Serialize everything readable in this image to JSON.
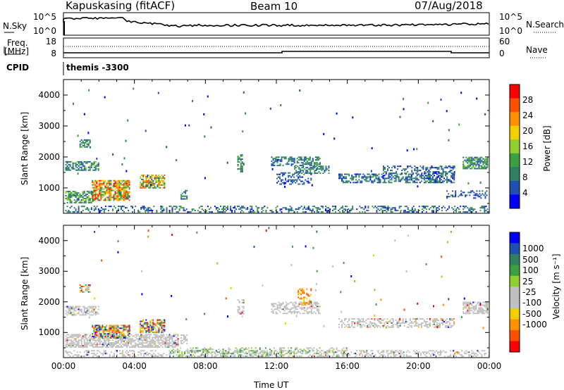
{
  "header": {
    "station": "Kapuskasing (fitACF)",
    "beam": "Beam 10",
    "date": "07/Aug/2018"
  },
  "top_panels": {
    "nsky_label": "N.Sky",
    "nsky_ticks": [
      "10^5",
      "10^0"
    ],
    "nsearch_label": "N.Search",
    "nsearch_ticks": [
      "10^5",
      "10^0"
    ],
    "freq_label": "Freq.",
    "freq_unit": "[MHz]",
    "freq_ticks": [
      "18",
      "8"
    ],
    "nave_label": "Nave",
    "nave_ticks": [
      "60",
      "0"
    ],
    "cpid_label": "CPID",
    "cpid_value": "themis -3300"
  },
  "colors": {
    "power_scale": [
      "#0000ff",
      "#1f4fb0",
      "#2f7f60",
      "#3aa040",
      "#8fd030",
      "#f0d000",
      "#ff9000",
      "#ff5000",
      "#ff0000"
    ],
    "velocity_scale": [
      "#ff0000",
      "#ff5000",
      "#ff9000",
      "#f0d000",
      "#c0c0c0",
      "#c0c0c0",
      "#8fd030",
      "#3aa040",
      "#2f7f60",
      "#1f4fb0",
      "#0000ff"
    ],
    "ground_scatter": "#c0c0c0"
  },
  "chart_data": [
    {
      "type": "heatmap",
      "name": "power-panel",
      "ylabel": "Slant Range [km]",
      "xlabel": "",
      "x_ticks": [
        "00:00",
        "04:00",
        "08:00",
        "12:00",
        "16:00",
        "20:00",
        "00:00"
      ],
      "y_ticks": [
        "1000",
        "2000",
        "3000",
        "4000"
      ],
      "ylim": [
        180,
        4500
      ],
      "colorbar": {
        "label": "Power [dB]",
        "range": [
          0,
          30
        ],
        "ticks": [
          "4",
          "8",
          "12",
          "16",
          "20",
          "24",
          "28"
        ]
      },
      "regions": [
        {
          "t0": 0.1,
          "t1": 24.0,
          "r0": 200,
          "r1": 420,
          "density": 0.35,
          "vmin": 2,
          "vmax": 12
        },
        {
          "t0": 0.1,
          "t1": 1.7,
          "r0": 500,
          "r1": 900,
          "density": 0.7,
          "vmin": 4,
          "vmax": 16
        },
        {
          "t0": 1.6,
          "t1": 3.7,
          "r0": 580,
          "r1": 1250,
          "density": 0.8,
          "vmin": 6,
          "vmax": 28
        },
        {
          "t0": 0.1,
          "t1": 2.0,
          "r0": 1550,
          "r1": 1850,
          "density": 0.6,
          "vmin": 4,
          "vmax": 14
        },
        {
          "t0": 0.9,
          "t1": 1.5,
          "r0": 2300,
          "r1": 2550,
          "density": 0.7,
          "vmin": 4,
          "vmax": 14
        },
        {
          "t0": 4.3,
          "t1": 5.7,
          "r0": 980,
          "r1": 1400,
          "density": 0.75,
          "vmin": 4,
          "vmax": 26
        },
        {
          "t0": 6.6,
          "t1": 7.0,
          "r0": 620,
          "r1": 900,
          "density": 0.5,
          "vmin": 4,
          "vmax": 12
        },
        {
          "t0": 9.8,
          "t1": 10.2,
          "r0": 1500,
          "r1": 2050,
          "density": 0.5,
          "vmin": 4,
          "vmax": 14
        },
        {
          "t0": 11.7,
          "t1": 14.5,
          "r0": 1700,
          "r1": 2000,
          "density": 0.55,
          "vmin": 4,
          "vmax": 12
        },
        {
          "t0": 12.0,
          "t1": 14.0,
          "r0": 1100,
          "r1": 1500,
          "density": 0.35,
          "vmin": 2,
          "vmax": 10
        },
        {
          "t0": 13.0,
          "t1": 15.0,
          "r0": 1450,
          "r1": 1700,
          "density": 0.55,
          "vmin": 4,
          "vmax": 12
        },
        {
          "t0": 15.5,
          "t1": 22.0,
          "r0": 1150,
          "r1": 1450,
          "density": 0.55,
          "vmin": 2,
          "vmax": 12
        },
        {
          "t0": 18.0,
          "t1": 22.0,
          "r0": 1450,
          "r1": 1700,
          "density": 0.4,
          "vmin": 2,
          "vmax": 10
        },
        {
          "t0": 22.5,
          "t1": 23.9,
          "r0": 1600,
          "r1": 2000,
          "density": 0.7,
          "vmin": 4,
          "vmax": 14
        },
        {
          "t0": 21.5,
          "t1": 23.9,
          "r0": 650,
          "r1": 900,
          "density": 0.25,
          "vmin": 2,
          "vmax": 8
        }
      ]
    },
    {
      "type": "heatmap",
      "name": "velocity-panel",
      "ylabel": "Slant Range [km]",
      "xlabel": "Time UT",
      "x_ticks": [
        "00:00",
        "04:00",
        "08:00",
        "12:00",
        "16:00",
        "20:00",
        "00:00"
      ],
      "y_ticks": [
        "1000",
        "2000",
        "3000",
        "4000"
      ],
      "ylim": [
        180,
        4500
      ],
      "colorbar": {
        "label": "Velocity [m s⁻¹]",
        "ticks": [
          "1000",
          "500",
          "100",
          "25",
          "-25",
          "-100",
          "-500",
          "-1000"
        ]
      },
      "regions": [
        {
          "t0": 0.1,
          "t1": 24.0,
          "r0": 200,
          "r1": 420,
          "density": 0.35,
          "kind": "ground"
        },
        {
          "t0": 0.1,
          "t1": 6.5,
          "r0": 500,
          "r1": 950,
          "density": 0.7,
          "kind": "ground"
        },
        {
          "t0": 1.6,
          "t1": 3.7,
          "r0": 800,
          "r1": 1250,
          "density": 0.75,
          "kind": "mixed"
        },
        {
          "t0": 0.1,
          "t1": 2.0,
          "r0": 1550,
          "r1": 1850,
          "density": 0.6,
          "kind": "ground"
        },
        {
          "t0": 0.9,
          "t1": 1.5,
          "r0": 2300,
          "r1": 2550,
          "density": 0.6,
          "kind": "mixed"
        },
        {
          "t0": 4.3,
          "t1": 5.7,
          "r0": 980,
          "r1": 1400,
          "density": 0.7,
          "kind": "mixed"
        },
        {
          "t0": 6.6,
          "t1": 7.0,
          "r0": 620,
          "r1": 900,
          "density": 0.5,
          "kind": "ground"
        },
        {
          "t0": 9.8,
          "t1": 10.2,
          "r0": 1500,
          "r1": 2050,
          "density": 0.5,
          "kind": "ground"
        },
        {
          "t0": 11.7,
          "t1": 14.5,
          "r0": 1600,
          "r1": 2000,
          "density": 0.5,
          "kind": "ground"
        },
        {
          "t0": 13.2,
          "t1": 14.0,
          "r0": 1900,
          "r1": 2400,
          "density": 0.4,
          "kind": "neg"
        },
        {
          "t0": 15.5,
          "t1": 22.0,
          "r0": 1150,
          "r1": 1450,
          "density": 0.5,
          "kind": "ground"
        },
        {
          "t0": 22.5,
          "t1": 23.9,
          "r0": 1600,
          "r1": 2000,
          "density": 0.7,
          "kind": "ground"
        },
        {
          "t0": 6.0,
          "t1": 16.0,
          "r0": 200,
          "r1": 500,
          "density": 0.3,
          "kind": "pos"
        }
      ]
    }
  ]
}
